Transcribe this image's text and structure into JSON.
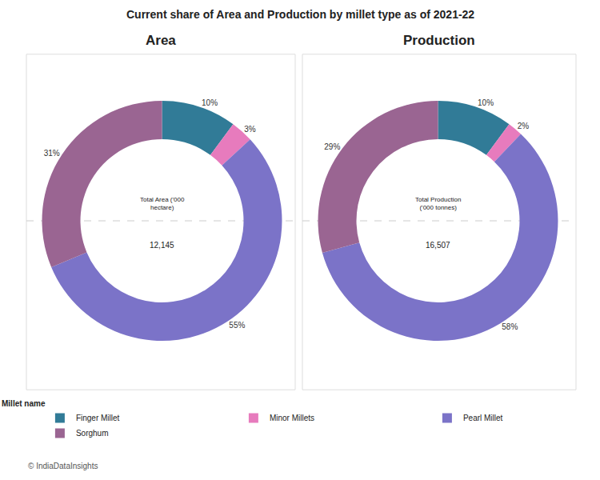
{
  "title": "Current share of Area and Production by millet type as of 2021-22",
  "legend_title": "Millet name",
  "legend": "bottom",
  "source": "© IndiaDataInsights",
  "chart_data": [
    {
      "type": "pie",
      "title": "Area",
      "categories": [
        "Finger Millet",
        "Minor Millets",
        "Pearl Millet",
        "Sorghum"
      ],
      "values": [
        10,
        3,
        55,
        31
      ],
      "value_labels": [
        "10%",
        "3%",
        "55%",
        "31%"
      ],
      "colors": [
        "#317b97",
        "#e77bbd",
        "#7b73c8",
        "#9a6592"
      ],
      "data_labels": true,
      "center_label": [
        "Total Area ('000",
        "hectare)"
      ],
      "total": {
        "value": 12145,
        "label": "12,145"
      }
    },
    {
      "type": "pie",
      "title": "Production",
      "categories": [
        "Finger Millet",
        "Minor Millets",
        "Pearl Millet",
        "Sorghum"
      ],
      "values": [
        10,
        2,
        58,
        29
      ],
      "value_labels": [
        "10%",
        "2%",
        "58%",
        "29%"
      ],
      "colors": [
        "#317b97",
        "#e77bbd",
        "#7b73c8",
        "#9a6592"
      ],
      "data_labels": true,
      "center_label": [
        "Total Production",
        "('000 tonnes)"
      ],
      "total": {
        "value": 16507,
        "label": "16,507"
      }
    }
  ]
}
